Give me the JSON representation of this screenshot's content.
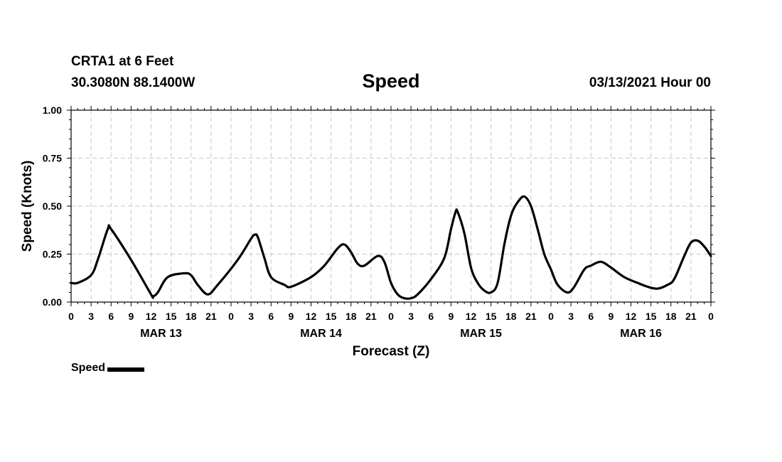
{
  "header": {
    "station": "CRTA1 at 6 Feet",
    "coords": "30.3080N 88.1400W",
    "title": "Speed",
    "run": "03/13/2021 Hour 00"
  },
  "legend": {
    "label": "Speed",
    "color": "#000000"
  },
  "chart_data": {
    "type": "line",
    "title": "Speed",
    "xlabel": "Forecast (Z)",
    "ylabel": "Speed (Knots)",
    "ylim": [
      0,
      1
    ],
    "xlim_hours": [
      0,
      96
    ],
    "grid": true,
    "y_ticks": [
      "0.00",
      "0.25",
      "0.50",
      "0.75",
      "1.00"
    ],
    "x_tick_labels": [
      "0",
      "3",
      "6",
      "9",
      "12",
      "15",
      "18",
      "21",
      "0",
      "3",
      "6",
      "9",
      "12",
      "15",
      "18",
      "21",
      "0",
      "3",
      "6",
      "9",
      "12",
      "15",
      "18",
      "21",
      "0",
      "3",
      "6",
      "9",
      "12",
      "15",
      "18",
      "21",
      "0"
    ],
    "day_labels": [
      "MAR 13",
      "MAR 14",
      "MAR 15",
      "MAR 16"
    ],
    "series": [
      {
        "name": "Speed",
        "color": "#000000",
        "points": [
          [
            0,
            0.1
          ],
          [
            1,
            0.1
          ],
          [
            3,
            0.14
          ],
          [
            4,
            0.22
          ],
          [
            5.5,
            0.38
          ],
          [
            6,
            0.38
          ],
          [
            9,
            0.22
          ],
          [
            12,
            0.04
          ],
          [
            12.3,
            0.03
          ],
          [
            13,
            0.05
          ],
          [
            14.5,
            0.13
          ],
          [
            17,
            0.15
          ],
          [
            18,
            0.14
          ],
          [
            19,
            0.09
          ],
          [
            20.5,
            0.04
          ],
          [
            22,
            0.09
          ],
          [
            25,
            0.22
          ],
          [
            27,
            0.33
          ],
          [
            27.5,
            0.35
          ],
          [
            28,
            0.34
          ],
          [
            29,
            0.23
          ],
          [
            30,
            0.13
          ],
          [
            32,
            0.09
          ],
          [
            33,
            0.08
          ],
          [
            36,
            0.13
          ],
          [
            38,
            0.19
          ],
          [
            40,
            0.28
          ],
          [
            41,
            0.3
          ],
          [
            42,
            0.26
          ],
          [
            43,
            0.2
          ],
          [
            44,
            0.19
          ],
          [
            46,
            0.24
          ],
          [
            47,
            0.21
          ],
          [
            48,
            0.1
          ],
          [
            49,
            0.04
          ],
          [
            50,
            0.02
          ],
          [
            51,
            0.02
          ],
          [
            52,
            0.04
          ],
          [
            54,
            0.12
          ],
          [
            56,
            0.23
          ],
          [
            57,
            0.38
          ],
          [
            57.7,
            0.47
          ],
          [
            58,
            0.47
          ],
          [
            59,
            0.36
          ],
          [
            60,
            0.18
          ],
          [
            61,
            0.1
          ],
          [
            62,
            0.06
          ],
          [
            63,
            0.05
          ],
          [
            64,
            0.1
          ],
          [
            65,
            0.3
          ],
          [
            66,
            0.45
          ],
          [
            67,
            0.52
          ],
          [
            68,
            0.55
          ],
          [
            69,
            0.5
          ],
          [
            70,
            0.38
          ],
          [
            71,
            0.25
          ],
          [
            72,
            0.17
          ],
          [
            73,
            0.09
          ],
          [
            74.5,
            0.05
          ],
          [
            75.5,
            0.08
          ],
          [
            77,
            0.17
          ],
          [
            78,
            0.19
          ],
          [
            79.5,
            0.21
          ],
          [
            81,
            0.18
          ],
          [
            83,
            0.13
          ],
          [
            85,
            0.1
          ],
          [
            86.5,
            0.08
          ],
          [
            88,
            0.07
          ],
          [
            89.5,
            0.09
          ],
          [
            90.5,
            0.12
          ],
          [
            92,
            0.24
          ],
          [
            93,
            0.31
          ],
          [
            94,
            0.32
          ],
          [
            95,
            0.29
          ],
          [
            96,
            0.24
          ]
        ]
      }
    ]
  }
}
